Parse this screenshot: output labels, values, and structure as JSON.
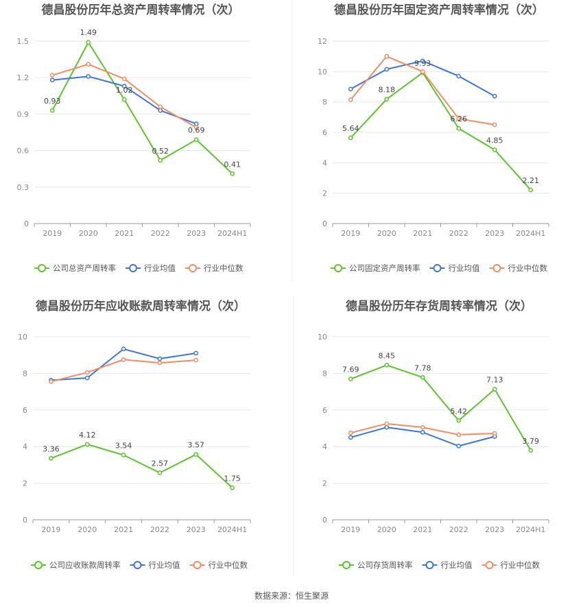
{
  "colors": {
    "company": "#5cc42b",
    "industry_avg": "#3d74db",
    "industry_median": "#f28c63",
    "grid": "#e6e6e6",
    "axis": "#999999",
    "tick_text": "#888888",
    "title_text": "#555555",
    "label_text": "#444444"
  },
  "footer": {
    "source": "数据来源：恒生聚源"
  },
  "chart_data": [
    {
      "type": "line",
      "title": "德昌股份历年总资产周转率情况（次）",
      "categories": [
        "2019",
        "2020",
        "2021",
        "2022",
        "2023",
        "2024H1"
      ],
      "ylim": [
        0,
        1.5
      ],
      "yticks": [
        "0",
        "0.3",
        "0.6",
        "0.9",
        "1.2",
        "1.5"
      ],
      "legend_position": "bottom",
      "series": [
        {
          "name": "公司总资产周转率",
          "role": "company",
          "values": [
            0.93,
            1.49,
            1.02,
            0.52,
            0.69,
            0.41
          ],
          "labels": [
            "0.93",
            "1.49",
            "1.02",
            "0.52",
            "0.69",
            "0.41"
          ]
        },
        {
          "name": "行业均值",
          "role": "industry_avg",
          "values": [
            1.18,
            1.21,
            1.13,
            0.93,
            0.82,
            null
          ]
        },
        {
          "name": "行业中位数",
          "role": "industry_median",
          "values": [
            1.22,
            1.31,
            1.19,
            0.96,
            0.79,
            null
          ]
        }
      ]
    },
    {
      "type": "line",
      "title": "德昌股份历年固定资产周转率情况（次）",
      "categories": [
        "2019",
        "2020",
        "2021",
        "2022",
        "2023",
        "2024H1"
      ],
      "ylim": [
        0,
        12
      ],
      "yticks": [
        "0",
        "2",
        "4",
        "6",
        "8",
        "10",
        "12"
      ],
      "legend_position": "bottom",
      "series": [
        {
          "name": "公司固定资产周转率",
          "role": "company",
          "values": [
            5.64,
            8.18,
            9.93,
            6.26,
            4.85,
            2.21
          ],
          "labels": [
            "5.64",
            "8.18",
            "9.93",
            "6.26",
            "4.85",
            "2.21"
          ]
        },
        {
          "name": "行业均值",
          "role": "industry_avg",
          "values": [
            8.85,
            10.15,
            10.7,
            9.7,
            8.38,
            null
          ]
        },
        {
          "name": "行业中位数",
          "role": "industry_median",
          "values": [
            8.15,
            11.0,
            10.0,
            6.9,
            6.5,
            null
          ]
        }
      ]
    },
    {
      "type": "line",
      "title": "德昌股份历年应收账款周转率情况（次）",
      "categories": [
        "2019",
        "2020",
        "2021",
        "2022",
        "2023",
        "2024H1"
      ],
      "ylim": [
        0,
        10
      ],
      "yticks": [
        "0",
        "2",
        "4",
        "6",
        "8",
        "10"
      ],
      "legend_position": "bottom",
      "series": [
        {
          "name": "公司应收账款周转率",
          "role": "company",
          "values": [
            3.36,
            4.12,
            3.54,
            2.57,
            3.57,
            1.75
          ],
          "labels": [
            "3.36",
            "4.12",
            "3.54",
            "2.57",
            "3.57",
            "1.75"
          ]
        },
        {
          "name": "行业均值",
          "role": "industry_avg",
          "values": [
            7.62,
            7.75,
            9.33,
            8.8,
            9.1,
            null
          ]
        },
        {
          "name": "行业中位数",
          "role": "industry_median",
          "values": [
            7.55,
            8.05,
            8.75,
            8.57,
            8.72,
            null
          ]
        }
      ]
    },
    {
      "type": "line",
      "title": "德昌股份历年存货周转率情况（次）",
      "categories": [
        "2019",
        "2020",
        "2021",
        "2022",
        "2023",
        "2024H1"
      ],
      "ylim": [
        0,
        10
      ],
      "yticks": [
        "0",
        "2",
        "4",
        "6",
        "8",
        "10"
      ],
      "legend_position": "bottom",
      "series": [
        {
          "name": "公司存货周转率",
          "role": "company",
          "values": [
            7.69,
            8.45,
            7.78,
            5.42,
            7.13,
            3.79
          ],
          "labels": [
            "7.69",
            "8.45",
            "7.78",
            "5.42",
            "7.13",
            "3.79"
          ]
        },
        {
          "name": "行业均值",
          "role": "industry_avg",
          "values": [
            4.5,
            5.05,
            4.78,
            4.03,
            4.55,
            null
          ]
        },
        {
          "name": "行业中位数",
          "role": "industry_median",
          "values": [
            4.75,
            5.25,
            5.05,
            4.65,
            4.72,
            null
          ]
        }
      ]
    }
  ]
}
